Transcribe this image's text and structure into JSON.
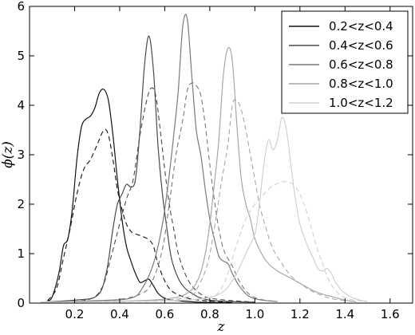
{
  "chart_data": {
    "type": "line",
    "title": "",
    "xlabel": "z",
    "ylabel": "ϕ(z)",
    "xlim": [
      0.0,
      1.7
    ],
    "ylim": [
      0,
      6
    ],
    "xticks": [
      "0.2",
      "0.4",
      "0.6",
      "0.8",
      "1.0",
      "1.2",
      "1.4",
      "1.6"
    ],
    "yticks": [
      "0",
      "1",
      "2",
      "3",
      "4",
      "5",
      "6"
    ],
    "grid": false,
    "legend_position": "top-right",
    "line_styles_note": "solid = photometric redshift distribution, dashed = smoothed distribution",
    "series": [
      {
        "name": "0.2<z<0.4",
        "color": "#111111",
        "solid": [
          [
            0.08,
            0.05
          ],
          [
            0.1,
            0.12
          ],
          [
            0.13,
            0.6
          ],
          [
            0.15,
            1.15
          ],
          [
            0.17,
            1.3
          ],
          [
            0.19,
            1.9
          ],
          [
            0.21,
            2.9
          ],
          [
            0.23,
            3.55
          ],
          [
            0.25,
            3.72
          ],
          [
            0.27,
            3.78
          ],
          [
            0.29,
            3.95
          ],
          [
            0.31,
            4.25
          ],
          [
            0.33,
            4.32
          ],
          [
            0.35,
            4.1
          ],
          [
            0.37,
            3.4
          ],
          [
            0.39,
            2.5
          ],
          [
            0.41,
            1.7
          ],
          [
            0.43,
            1.15
          ],
          [
            0.45,
            0.85
          ],
          [
            0.47,
            0.6
          ],
          [
            0.49,
            0.42
          ],
          [
            0.51,
            0.45
          ],
          [
            0.53,
            0.48
          ],
          [
            0.55,
            0.35
          ],
          [
            0.57,
            0.2
          ],
          [
            0.6,
            0.1
          ],
          [
            0.65,
            0.05
          ],
          [
            0.75,
            0.02
          ],
          [
            0.9,
            0.01
          ]
        ],
        "dashed": [
          [
            0.08,
            0.05
          ],
          [
            0.12,
            0.3
          ],
          [
            0.15,
            0.9
          ],
          [
            0.18,
            1.5
          ],
          [
            0.21,
            2.2
          ],
          [
            0.24,
            2.7
          ],
          [
            0.27,
            2.9
          ],
          [
            0.3,
            3.2
          ],
          [
            0.33,
            3.5
          ],
          [
            0.35,
            3.4
          ],
          [
            0.37,
            2.9
          ],
          [
            0.39,
            2.3
          ],
          [
            0.41,
            1.9
          ],
          [
            0.43,
            1.6
          ],
          [
            0.45,
            1.45
          ],
          [
            0.47,
            1.4
          ],
          [
            0.5,
            1.35
          ],
          [
            0.53,
            1.28
          ],
          [
            0.55,
            1.15
          ],
          [
            0.57,
            0.8
          ],
          [
            0.6,
            0.45
          ],
          [
            0.63,
            0.25
          ],
          [
            0.67,
            0.15
          ],
          [
            0.72,
            0.08
          ],
          [
            0.8,
            0.04
          ],
          [
            0.9,
            0.02
          ]
        ]
      },
      {
        "name": "0.4<z<0.6",
        "color": "#4a4a4a",
        "solid": [
          [
            0.05,
            0.02
          ],
          [
            0.2,
            0.06
          ],
          [
            0.3,
            0.15
          ],
          [
            0.34,
            0.6
          ],
          [
            0.37,
            1.5
          ],
          [
            0.39,
            2.0
          ],
          [
            0.41,
            2.2
          ],
          [
            0.43,
            2.4
          ],
          [
            0.45,
            2.35
          ],
          [
            0.47,
            2.5
          ],
          [
            0.49,
            3.5
          ],
          [
            0.51,
            4.8
          ],
          [
            0.53,
            5.4
          ],
          [
            0.55,
            4.7
          ],
          [
            0.57,
            3.2
          ],
          [
            0.59,
            2.2
          ],
          [
            0.61,
            1.5
          ],
          [
            0.63,
            0.9
          ],
          [
            0.66,
            0.5
          ],
          [
            0.69,
            0.3
          ],
          [
            0.72,
            0.2
          ],
          [
            0.75,
            0.12
          ],
          [
            0.8,
            0.06
          ],
          [
            0.9,
            0.03
          ],
          [
            1.0,
            0.02
          ]
        ],
        "dashed": [
          [
            0.05,
            0.02
          ],
          [
            0.25,
            0.06
          ],
          [
            0.32,
            0.3
          ],
          [
            0.36,
            0.9
          ],
          [
            0.4,
            1.6
          ],
          [
            0.43,
            2.1
          ],
          [
            0.46,
            2.5
          ],
          [
            0.49,
            3.4
          ],
          [
            0.52,
            4.1
          ],
          [
            0.54,
            4.35
          ],
          [
            0.56,
            4.2
          ],
          [
            0.58,
            3.5
          ],
          [
            0.6,
            2.7
          ],
          [
            0.62,
            2.0
          ],
          [
            0.64,
            1.5
          ],
          [
            0.66,
            1.0
          ],
          [
            0.69,
            0.6
          ],
          [
            0.72,
            0.35
          ],
          [
            0.76,
            0.18
          ],
          [
            0.8,
            0.1
          ],
          [
            0.9,
            0.05
          ],
          [
            1.0,
            0.02
          ]
        ]
      },
      {
        "name": "0.6<z<0.8",
        "color": "#7a7a7a",
        "solid": [
          [
            0.05,
            0.02
          ],
          [
            0.3,
            0.05
          ],
          [
            0.45,
            0.1
          ],
          [
            0.5,
            0.3
          ],
          [
            0.55,
            0.8
          ],
          [
            0.59,
            1.6
          ],
          [
            0.62,
            2.6
          ],
          [
            0.64,
            3.4
          ],
          [
            0.66,
            4.3
          ],
          [
            0.68,
            5.6
          ],
          [
            0.7,
            5.75
          ],
          [
            0.72,
            4.6
          ],
          [
            0.74,
            3.5
          ],
          [
            0.76,
            3.0
          ],
          [
            0.78,
            2.3
          ],
          [
            0.8,
            1.7
          ],
          [
            0.82,
            1.3
          ],
          [
            0.84,
            0.95
          ],
          [
            0.86,
            0.85
          ],
          [
            0.88,
            0.8
          ],
          [
            0.9,
            0.6
          ],
          [
            0.93,
            0.35
          ],
          [
            0.97,
            0.15
          ],
          [
            1.02,
            0.07
          ],
          [
            1.1,
            0.03
          ]
        ],
        "dashed": [
          [
            0.05,
            0.02
          ],
          [
            0.35,
            0.05
          ],
          [
            0.5,
            0.2
          ],
          [
            0.55,
            0.5
          ],
          [
            0.59,
            1.1
          ],
          [
            0.62,
            2.0
          ],
          [
            0.65,
            3.0
          ],
          [
            0.68,
            3.7
          ],
          [
            0.7,
            4.3
          ],
          [
            0.72,
            4.45
          ],
          [
            0.74,
            4.4
          ],
          [
            0.76,
            4.2
          ],
          [
            0.78,
            3.6
          ],
          [
            0.8,
            2.8
          ],
          [
            0.82,
            2.1
          ],
          [
            0.84,
            1.5
          ],
          [
            0.86,
            1.1
          ],
          [
            0.88,
            0.9
          ],
          [
            0.9,
            0.75
          ],
          [
            0.93,
            0.45
          ],
          [
            0.97,
            0.2
          ],
          [
            1.02,
            0.08
          ],
          [
            1.1,
            0.03
          ]
        ]
      },
      {
        "name": "0.8<z<1.0",
        "color": "#a6a6a6",
        "solid": [
          [
            0.05,
            0.02
          ],
          [
            0.4,
            0.04
          ],
          [
            0.6,
            0.08
          ],
          [
            0.7,
            0.2
          ],
          [
            0.75,
            0.5
          ],
          [
            0.78,
            1.0
          ],
          [
            0.8,
            1.6
          ],
          [
            0.82,
            2.4
          ],
          [
            0.84,
            3.3
          ],
          [
            0.86,
            4.6
          ],
          [
            0.88,
            5.15
          ],
          [
            0.9,
            4.9
          ],
          [
            0.92,
            3.6
          ],
          [
            0.94,
            2.5
          ],
          [
            0.96,
            2.0
          ],
          [
            0.98,
            1.7
          ],
          [
            1.0,
            1.3
          ],
          [
            1.03,
            1.0
          ],
          [
            1.06,
            0.8
          ],
          [
            1.1,
            0.65
          ],
          [
            1.14,
            0.55
          ],
          [
            1.18,
            0.45
          ],
          [
            1.22,
            0.35
          ],
          [
            1.26,
            0.25
          ],
          [
            1.3,
            0.18
          ],
          [
            1.35,
            0.12
          ],
          [
            1.4,
            0.06
          ],
          [
            1.45,
            0.03
          ]
        ],
        "dashed": [
          [
            0.05,
            0.02
          ],
          [
            0.5,
            0.04
          ],
          [
            0.7,
            0.12
          ],
          [
            0.75,
            0.35
          ],
          [
            0.79,
            0.8
          ],
          [
            0.82,
            1.5
          ],
          [
            0.85,
            2.4
          ],
          [
            0.88,
            3.2
          ],
          [
            0.9,
            4.0
          ],
          [
            0.92,
            4.1
          ],
          [
            0.94,
            3.9
          ],
          [
            0.96,
            3.5
          ],
          [
            0.98,
            3.0
          ],
          [
            1.0,
            2.5
          ],
          [
            1.02,
            2.0
          ],
          [
            1.05,
            1.5
          ],
          [
            1.08,
            1.1
          ],
          [
            1.12,
            0.8
          ],
          [
            1.16,
            0.55
          ],
          [
            1.2,
            0.4
          ],
          [
            1.25,
            0.25
          ],
          [
            1.3,
            0.15
          ],
          [
            1.35,
            0.08
          ],
          [
            1.45,
            0.03
          ]
        ]
      },
      {
        "name": "1.0<z<1.2",
        "color": "#d0d0d0",
        "solid": [
          [
            0.05,
            0.02
          ],
          [
            0.5,
            0.04
          ],
          [
            0.75,
            0.08
          ],
          [
            0.85,
            0.2
          ],
          [
            0.9,
            0.45
          ],
          [
            0.94,
            0.8
          ],
          [
            0.97,
            1.1
          ],
          [
            1.0,
            1.4
          ],
          [
            1.02,
            2.0
          ],
          [
            1.04,
            2.8
          ],
          [
            1.06,
            3.3
          ],
          [
            1.08,
            3.1
          ],
          [
            1.1,
            3.3
          ],
          [
            1.12,
            3.75
          ],
          [
            1.14,
            3.5
          ],
          [
            1.16,
            2.8
          ],
          [
            1.18,
            2.1
          ],
          [
            1.2,
            1.6
          ],
          [
            1.23,
            1.2
          ],
          [
            1.26,
            0.9
          ],
          [
            1.28,
            0.7
          ],
          [
            1.3,
            0.65
          ],
          [
            1.32,
            0.7
          ],
          [
            1.34,
            0.6
          ],
          [
            1.36,
            0.4
          ],
          [
            1.4,
            0.2
          ],
          [
            1.45,
            0.08
          ],
          [
            1.5,
            0.03
          ]
        ],
        "dashed": [
          [
            0.05,
            0.02
          ],
          [
            0.6,
            0.04
          ],
          [
            0.8,
            0.12
          ],
          [
            0.85,
            0.3
          ],
          [
            0.88,
            0.6
          ],
          [
            0.92,
            1.2
          ],
          [
            0.96,
            1.7
          ],
          [
            1.0,
            2.0
          ],
          [
            1.03,
            2.15
          ],
          [
            1.06,
            2.3
          ],
          [
            1.09,
            2.4
          ],
          [
            1.12,
            2.45
          ],
          [
            1.15,
            2.45
          ],
          [
            1.18,
            2.35
          ],
          [
            1.21,
            2.1
          ],
          [
            1.24,
            1.7
          ],
          [
            1.27,
            1.2
          ],
          [
            1.3,
            0.8
          ],
          [
            1.33,
            0.45
          ],
          [
            1.37,
            0.2
          ],
          [
            1.42,
            0.08
          ],
          [
            1.5,
            0.03
          ]
        ]
      }
    ]
  }
}
